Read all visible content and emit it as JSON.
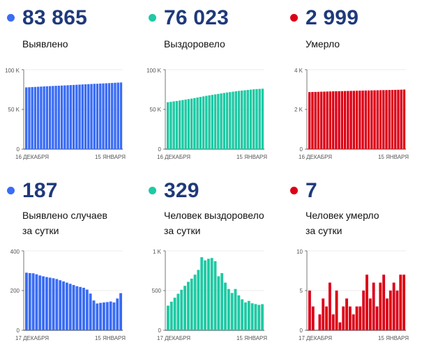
{
  "colors": {
    "blue": "#3a6cf4",
    "green": "#1fc9a4",
    "red": "#dc0016",
    "number": "#1f3a7a"
  },
  "panels": [
    {
      "value": "83 865",
      "label_lines": [
        "Выявлено"
      ],
      "color": "#3a6cf4"
    },
    {
      "value": "76 023",
      "label_lines": [
        "Выздоровело"
      ],
      "color": "#1fc9a4"
    },
    {
      "value": "2 999",
      "label_lines": [
        "Умерло"
      ],
      "color": "#dc0016"
    },
    {
      "value": "187",
      "label_lines": [
        "Выявлено случаев",
        "за сутки"
      ],
      "color": "#3a6cf4"
    },
    {
      "value": "329",
      "label_lines": [
        "Человек выздоровело",
        "за сутки"
      ],
      "color": "#1fc9a4"
    },
    {
      "value": "7",
      "label_lines": [
        "Человек умерло",
        "за сутки"
      ],
      "color": "#dc0016"
    }
  ],
  "chart_data": [
    {
      "type": "bar",
      "color": "#3a6cf4",
      "y_ticks": [
        {
          "value": 0,
          "label": "0"
        },
        {
          "value": 50000,
          "label": "50 K"
        },
        {
          "value": 100000,
          "label": "100 K"
        }
      ],
      "ylim": [
        0,
        100000
      ],
      "x_labels": [
        "16 ДЕКАБРЯ",
        "15 ЯНВАРЯ"
      ],
      "values": [
        77700,
        77900,
        78100,
        78300,
        78500,
        78700,
        78900,
        79100,
        79300,
        79500,
        79700,
        79800,
        80000,
        80200,
        80400,
        80600,
        80800,
        81000,
        81200,
        81400,
        81600,
        81800,
        82000,
        82200,
        82300,
        82500,
        82700,
        82900,
        83100,
        83300,
        83500,
        83700,
        83865
      ]
    },
    {
      "type": "bar",
      "color": "#1fc9a4",
      "y_ticks": [
        {
          "value": 0,
          "label": "0"
        },
        {
          "value": 50000,
          "label": "50 K"
        },
        {
          "value": 100000,
          "label": "100 K"
        }
      ],
      "ylim": [
        0,
        100000
      ],
      "x_labels": [
        "16 ДЕКАБРЯ",
        "15 ЯНВАРЯ"
      ],
      "values": [
        59000,
        59500,
        60100,
        60600,
        61200,
        61800,
        62400,
        63000,
        63600,
        64300,
        65000,
        65700,
        66400,
        67100,
        67700,
        68300,
        68900,
        69500,
        70100,
        70700,
        71300,
        71800,
        72300,
        72800,
        73300,
        73700,
        74100,
        74500,
        74900,
        75300,
        75600,
        75800,
        76023
      ]
    },
    {
      "type": "bar",
      "color": "#dc0016",
      "y_ticks": [
        {
          "value": 0,
          "label": "0"
        },
        {
          "value": 2000,
          "label": "2 K"
        },
        {
          "value": 4000,
          "label": "4 K"
        }
      ],
      "ylim": [
        0,
        4000
      ],
      "x_labels": [
        "16 ДЕКАБРЯ",
        "15 ЯНВАРЯ"
      ],
      "values": [
        2870,
        2875,
        2880,
        2885,
        2890,
        2895,
        2900,
        2905,
        2910,
        2913,
        2917,
        2920,
        2925,
        2928,
        2932,
        2935,
        2940,
        2943,
        2947,
        2950,
        2953,
        2957,
        2960,
        2963,
        2967,
        2970,
        2973,
        2977,
        2980,
        2984,
        2988,
        2993,
        2999
      ]
    },
    {
      "type": "bar",
      "color": "#3a6cf4",
      "y_ticks": [
        {
          "value": 0,
          "label": "0"
        },
        {
          "value": 200,
          "label": "200"
        },
        {
          "value": 400,
          "label": "400"
        }
      ],
      "ylim": [
        0,
        400
      ],
      "x_labels": [
        "17 ДЕКАБРЯ",
        "15 ЯНВАРЯ"
      ],
      "values": [
        290,
        288,
        287,
        282,
        276,
        272,
        268,
        265,
        262,
        258,
        252,
        246,
        240,
        234,
        228,
        222,
        218,
        214,
        205,
        185,
        150,
        135,
        138,
        140,
        142,
        145,
        140,
        160,
        187
      ]
    },
    {
      "type": "bar",
      "color": "#1fc9a4",
      "y_ticks": [
        {
          "value": 0,
          "label": "0"
        },
        {
          "value": 500,
          "label": "500"
        },
        {
          "value": 1000,
          "label": "1 K"
        }
      ],
      "ylim": [
        0,
        1000
      ],
      "x_labels": [
        "17 ДЕКАБРЯ",
        "15 ЯНВАРЯ"
      ],
      "values": [
        310,
        360,
        410,
        460,
        510,
        560,
        610,
        650,
        700,
        760,
        920,
        880,
        900,
        910,
        870,
        680,
        720,
        600,
        520,
        470,
        520,
        440,
        390,
        350,
        370,
        340,
        330,
        320,
        329
      ]
    },
    {
      "type": "bar",
      "color": "#dc0016",
      "y_ticks": [
        {
          "value": 0,
          "label": "0"
        },
        {
          "value": 5,
          "label": "5"
        },
        {
          "value": 10,
          "label": "10"
        }
      ],
      "ylim": [
        0,
        10
      ],
      "x_labels": [
        "17 ДЕКАБРЯ",
        "15 ЯНВАРЯ"
      ],
      "values": [
        5,
        3,
        0,
        2,
        4,
        3,
        6,
        2,
        5,
        1,
        3,
        4,
        3,
        2,
        3,
        3,
        5,
        7,
        4,
        6,
        3,
        6,
        7,
        4,
        5,
        6,
        5,
        7,
        7
      ]
    }
  ]
}
